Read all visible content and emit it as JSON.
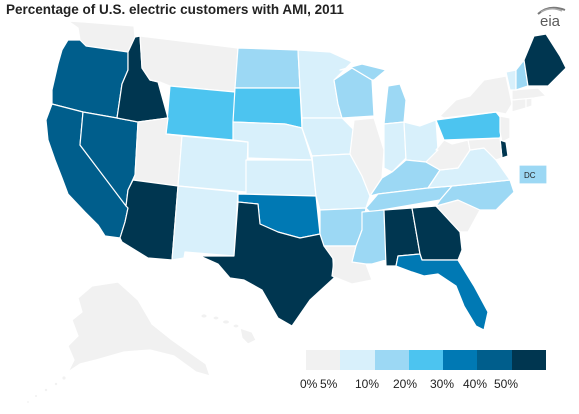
{
  "title": "Percentage of U.S. electric customers with AMI, 2011",
  "logo_text": "eia",
  "dc_label": "DC",
  "colors": {
    "c0": "#f1f1f1",
    "c5": "#d8f0fb",
    "c10": "#9cd8f4",
    "c20": "#4cc4f0",
    "c30": "#0079b4",
    "c40": "#005e8c",
    "c50": "#003650"
  },
  "legend": {
    "labels": [
      "0%",
      "5%",
      "10%",
      "20%",
      "30%",
      "40%",
      "50%"
    ]
  },
  "map_data": {
    "type": "choropleth",
    "metric": "Percentage of U.S. electric customers with AMI",
    "year": 2011,
    "bins": [
      "0%",
      "5%",
      "10%",
      "20%",
      "30%",
      "40%",
      "50%"
    ],
    "states": {
      "WA": "0%",
      "OR": "40%",
      "CA": "40%",
      "NV": "40%",
      "ID": "50%",
      "MT": "0%",
      "WY": "20%",
      "UT": "0%",
      "AZ": "50%",
      "CO": "5%",
      "NM": "5%",
      "ND": "10%",
      "SD": "20%",
      "NE": "5%",
      "KS": "5%",
      "OK": "30%",
      "TX": "50%",
      "MN": "5%",
      "IA": "5%",
      "MO": "5%",
      "AR": "10%",
      "LA": "0%",
      "WI": "10%",
      "IL": "0%",
      "MI": "10%",
      "IN": "5%",
      "OH": "5%",
      "KY": "10%",
      "TN": "10%",
      "MS": "10%",
      "AL": "50%",
      "GA": "50%",
      "FL": "30%",
      "SC": "0%",
      "NC": "10%",
      "VA": "5%",
      "WV": "0%",
      "PA": "20%",
      "NY": "0%",
      "VT": "5%",
      "NH": "10%",
      "ME": "50%",
      "MA": "0%",
      "CT": "0%",
      "RI": "0%",
      "NJ": "0%",
      "DE": "50%",
      "MD": "0%",
      "DC": "10%",
      "AK": "0%",
      "HI": "0%"
    }
  }
}
